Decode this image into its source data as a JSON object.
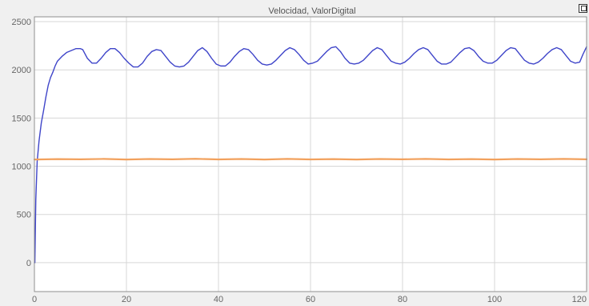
{
  "window": {
    "title": "Velocidad, ValorDigital"
  },
  "icons": {
    "restore": "restore-window-icon"
  },
  "colors": {
    "plot_background": "#ffffff",
    "grid": "#d7d7d7",
    "frame": "#8f8f8f",
    "speed": "#3f45c9",
    "digital": "#f2a15d"
  },
  "chart_data": {
    "type": "line",
    "title": "Velocidad, ValorDigital",
    "xlabel": "",
    "ylabel": "",
    "xlim": [
      0,
      120
    ],
    "ylim": [
      -300,
      2550
    ],
    "x_ticks": [
      0,
      20,
      40,
      60,
      80,
      100,
      120
    ],
    "y_ticks": [
      0,
      500,
      1000,
      1500,
      2000,
      2500
    ],
    "x_tick_labels": [
      "0",
      "20",
      "40",
      "60",
      "80",
      "100",
      "120"
    ],
    "y_tick_labels": [
      "0",
      "500",
      "1000",
      "1500",
      "2000",
      "2500"
    ],
    "grid": true,
    "legend": "none",
    "series": [
      {
        "points": [
          [
            0,
            0
          ],
          [
            0.1,
            0
          ],
          [
            0.3,
            650
          ],
          [
            0.6,
            1050
          ],
          [
            1,
            1260
          ],
          [
            1.5,
            1450
          ],
          [
            2,
            1580
          ],
          [
            2.5,
            1720
          ],
          [
            3,
            1840
          ],
          [
            3.5,
            1920
          ],
          [
            4,
            1975
          ],
          [
            4.5,
            2040
          ],
          [
            5,
            2090
          ],
          [
            6,
            2140
          ],
          [
            7,
            2180
          ],
          [
            8,
            2200
          ],
          [
            9,
            2220
          ],
          [
            10,
            2220
          ],
          [
            10.5,
            2210
          ],
          [
            11.5,
            2120
          ],
          [
            12.5,
            2070
          ],
          [
            13.5,
            2070
          ],
          [
            14.5,
            2120
          ],
          [
            15.5,
            2180
          ],
          [
            16.5,
            2220
          ],
          [
            17.5,
            2220
          ],
          [
            18.5,
            2180
          ],
          [
            19.5,
            2120
          ],
          [
            20.5,
            2070
          ],
          [
            21.5,
            2030
          ],
          [
            22.5,
            2030
          ],
          [
            23.5,
            2070
          ],
          [
            24.5,
            2140
          ],
          [
            25.5,
            2190
          ],
          [
            26.5,
            2210
          ],
          [
            27.5,
            2200
          ],
          [
            28.5,
            2140
          ],
          [
            29.5,
            2080
          ],
          [
            30.5,
            2040
          ],
          [
            31.5,
            2030
          ],
          [
            32.5,
            2040
          ],
          [
            33.5,
            2080
          ],
          [
            34.5,
            2140
          ],
          [
            35.5,
            2200
          ],
          [
            36.5,
            2230
          ],
          [
            37.5,
            2190
          ],
          [
            38.5,
            2120
          ],
          [
            39.5,
            2060
          ],
          [
            40.5,
            2040
          ],
          [
            41.5,
            2040
          ],
          [
            42.5,
            2080
          ],
          [
            43.5,
            2140
          ],
          [
            44.5,
            2190
          ],
          [
            45.5,
            2220
          ],
          [
            46.5,
            2210
          ],
          [
            47.5,
            2160
          ],
          [
            48.5,
            2100
          ],
          [
            49.5,
            2060
          ],
          [
            50.5,
            2050
          ],
          [
            51.5,
            2060
          ],
          [
            52.5,
            2100
          ],
          [
            53.5,
            2150
          ],
          [
            54.5,
            2200
          ],
          [
            55.5,
            2230
          ],
          [
            56.5,
            2210
          ],
          [
            57.5,
            2160
          ],
          [
            58.5,
            2100
          ],
          [
            59.5,
            2060
          ],
          [
            60.5,
            2070
          ],
          [
            61.5,
            2090
          ],
          [
            62.5,
            2140
          ],
          [
            63.5,
            2190
          ],
          [
            64.5,
            2230
          ],
          [
            65.5,
            2240
          ],
          [
            66.5,
            2190
          ],
          [
            67.5,
            2120
          ],
          [
            68.5,
            2070
          ],
          [
            69.5,
            2060
          ],
          [
            70.5,
            2070
          ],
          [
            71.5,
            2100
          ],
          [
            72.5,
            2150
          ],
          [
            73.5,
            2200
          ],
          [
            74.5,
            2230
          ],
          [
            75.5,
            2210
          ],
          [
            76.5,
            2150
          ],
          [
            77.5,
            2090
          ],
          [
            78.5,
            2070
          ],
          [
            79.5,
            2060
          ],
          [
            80.5,
            2080
          ],
          [
            81.5,
            2120
          ],
          [
            82.5,
            2170
          ],
          [
            83.5,
            2210
          ],
          [
            84.5,
            2230
          ],
          [
            85.5,
            2210
          ],
          [
            86.5,
            2150
          ],
          [
            87.5,
            2090
          ],
          [
            88.5,
            2060
          ],
          [
            89.5,
            2060
          ],
          [
            90.5,
            2080
          ],
          [
            91.5,
            2130
          ],
          [
            92.5,
            2180
          ],
          [
            93.5,
            2220
          ],
          [
            94.5,
            2230
          ],
          [
            95.5,
            2200
          ],
          [
            96.5,
            2140
          ],
          [
            97.5,
            2090
          ],
          [
            98.5,
            2070
          ],
          [
            99.5,
            2070
          ],
          [
            100.5,
            2100
          ],
          [
            101.5,
            2150
          ],
          [
            102.5,
            2200
          ],
          [
            103.5,
            2230
          ],
          [
            104.5,
            2220
          ],
          [
            105.5,
            2160
          ],
          [
            106.5,
            2100
          ],
          [
            107.5,
            2070
          ],
          [
            108.5,
            2060
          ],
          [
            109.5,
            2080
          ],
          [
            110.5,
            2120
          ],
          [
            111.5,
            2170
          ],
          [
            112.5,
            2210
          ],
          [
            113.5,
            2230
          ],
          [
            114.5,
            2210
          ],
          [
            115.5,
            2150
          ],
          [
            116.5,
            2090
          ],
          [
            117.5,
            2070
          ],
          [
            118.5,
            2080
          ],
          [
            119.2,
            2160
          ],
          [
            120,
            2240
          ]
        ]
      },
      {
        "points": [
          [
            0,
            1070
          ],
          [
            5,
            1074
          ],
          [
            10,
            1072
          ],
          [
            15,
            1076
          ],
          [
            20,
            1070
          ],
          [
            25,
            1075
          ],
          [
            30,
            1072
          ],
          [
            35,
            1077
          ],
          [
            40,
            1071
          ],
          [
            45,
            1075
          ],
          [
            50,
            1070
          ],
          [
            55,
            1076
          ],
          [
            60,
            1071
          ],
          [
            65,
            1074
          ],
          [
            70,
            1070
          ],
          [
            75,
            1075
          ],
          [
            80,
            1072
          ],
          [
            85,
            1076
          ],
          [
            90,
            1071
          ],
          [
            95,
            1074
          ],
          [
            100,
            1070
          ],
          [
            105,
            1075
          ],
          [
            110,
            1072
          ],
          [
            115,
            1076
          ],
          [
            120,
            1072
          ]
        ]
      }
    ]
  }
}
